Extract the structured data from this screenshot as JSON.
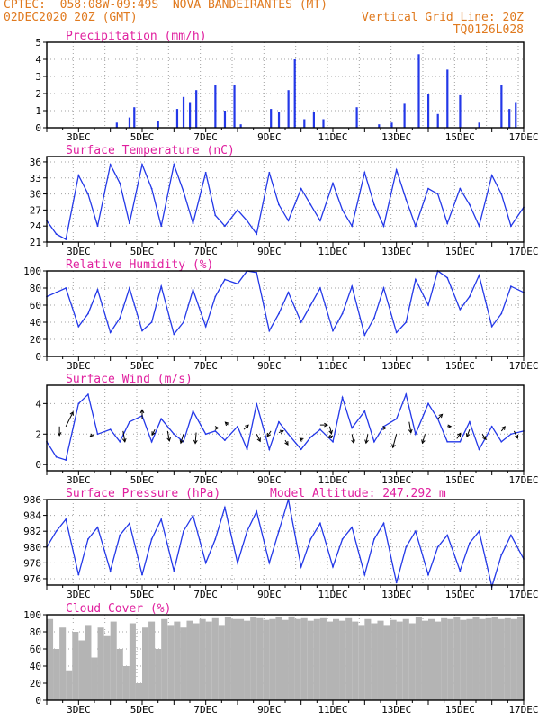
{
  "header": {
    "line1_left": "CPTEC:  058:08W-09:49S  NOVA BANDEIRANTES (MT)",
    "line2_left": "02DEC2020 20Z (GMT)",
    "line2_right": "Vertical Grid Line: 20Z",
    "line3_right": "TQ0126L028"
  },
  "colors": {
    "series": "#2338e8",
    "title": "#e0209f",
    "header": "#e07a1f",
    "cloud": "#b4b4b4",
    "arrow": "#000000"
  },
  "x_tick_labels": [
    "3DEC",
    "5DEC",
    "7DEC",
    "9DEC",
    "11DEC",
    "13DEC",
    "15DEC",
    "17DEC"
  ],
  "chart_data": [
    {
      "type": "bar",
      "title": "Precipitation (mm/h)",
      "ylim": [
        0,
        5
      ],
      "yticks": [
        0,
        1,
        2,
        3,
        4,
        5
      ],
      "grid": true,
      "bars": [
        [
          4.2,
          0.3
        ],
        [
          4.6,
          0.6
        ],
        [
          4.75,
          1.2
        ],
        [
          5.5,
          0.4
        ],
        [
          6.1,
          1.1
        ],
        [
          6.3,
          1.8
        ],
        [
          6.5,
          1.5
        ],
        [
          6.7,
          2.2
        ],
        [
          7.3,
          2.5
        ],
        [
          7.6,
          1.0
        ],
        [
          7.9,
          2.5
        ],
        [
          8.1,
          0.2
        ],
        [
          9.05,
          1.1
        ],
        [
          9.3,
          0.9
        ],
        [
          9.6,
          2.2
        ],
        [
          9.8,
          4.0
        ],
        [
          10.1,
          0.5
        ],
        [
          10.4,
          0.9
        ],
        [
          10.7,
          0.5
        ],
        [
          11.75,
          1.2
        ],
        [
          12.45,
          0.2
        ],
        [
          12.85,
          0.3
        ],
        [
          13.25,
          1.4
        ],
        [
          13.7,
          4.3
        ],
        [
          14.0,
          2.0
        ],
        [
          14.3,
          0.8
        ],
        [
          14.6,
          3.4
        ],
        [
          15.0,
          1.9
        ],
        [
          15.6,
          0.3
        ],
        [
          16.3,
          2.5
        ],
        [
          16.55,
          1.1
        ],
        [
          16.75,
          1.5
        ]
      ]
    },
    {
      "type": "line",
      "title": "Surface Temperature (nC)",
      "ylim": [
        21,
        37
      ],
      "yticks": [
        21,
        24,
        27,
        30,
        33,
        36
      ],
      "grid": true,
      "x": [
        2.0,
        2.3,
        2.6,
        3.0,
        3.3,
        3.6,
        4.0,
        4.3,
        4.6,
        5.0,
        5.3,
        5.6,
        6.0,
        6.3,
        6.6,
        7.0,
        7.3,
        7.6,
        8.0,
        8.3,
        8.6,
        9.0,
        9.3,
        9.6,
        10.0,
        10.3,
        10.6,
        11.0,
        11.3,
        11.6,
        12.0,
        12.3,
        12.6,
        13.0,
        13.3,
        13.6,
        14.0,
        14.3,
        14.6,
        15.0,
        15.3,
        15.6,
        16.0,
        16.3,
        16.6,
        17.0
      ],
      "values": [
        25,
        22.5,
        21.5,
        33.5,
        30,
        24,
        35.5,
        32,
        24.5,
        35.5,
        31,
        24,
        35.5,
        30.5,
        24.5,
        34,
        26,
        24,
        27,
        25,
        22.5,
        34,
        28,
        25,
        31,
        28,
        25,
        32,
        27,
        24,
        34,
        28,
        24,
        34.5,
        29,
        24,
        31,
        30,
        24.5,
        31,
        28,
        24,
        33.5,
        30,
        24,
        27.5
      ]
    },
    {
      "type": "line",
      "title": "Relative Humidity (%)",
      "ylim": [
        0,
        100
      ],
      "yticks": [
        0,
        20,
        40,
        60,
        80,
        100
      ],
      "grid": true,
      "x": [
        2.0,
        2.3,
        2.6,
        3.0,
        3.3,
        3.6,
        4.0,
        4.3,
        4.6,
        5.0,
        5.3,
        5.6,
        6.0,
        6.3,
        6.6,
        7.0,
        7.3,
        7.6,
        8.0,
        8.3,
        8.6,
        9.0,
        9.3,
        9.6,
        10.0,
        10.3,
        10.6,
        11.0,
        11.3,
        11.6,
        12.0,
        12.3,
        12.6,
        13.0,
        13.3,
        13.6,
        14.0,
        14.3,
        14.6,
        15.0,
        15.3,
        15.6,
        16.0,
        16.3,
        16.6,
        17.0
      ],
      "values": [
        70,
        75,
        80,
        35,
        50,
        78,
        28,
        45,
        80,
        30,
        40,
        82,
        26,
        40,
        78,
        35,
        70,
        90,
        85,
        100,
        98,
        30,
        50,
        75,
        40,
        60,
        80,
        30,
        50,
        82,
        25,
        45,
        80,
        28,
        40,
        90,
        60,
        100,
        92,
        55,
        70,
        95,
        35,
        50,
        82,
        75
      ]
    },
    {
      "type": "line",
      "title": "Surface Wind (m/s)",
      "ylim": [
        -0.4,
        5.2
      ],
      "yticks": [
        0,
        2,
        4
      ],
      "grid": true,
      "x": [
        2.0,
        2.3,
        2.6,
        3.0,
        3.3,
        3.6,
        4.0,
        4.3,
        4.6,
        5.0,
        5.3,
        5.6,
        6.0,
        6.3,
        6.6,
        7.0,
        7.3,
        7.6,
        8.0,
        8.3,
        8.6,
        9.0,
        9.3,
        9.6,
        10.0,
        10.3,
        10.6,
        11.0,
        11.3,
        11.6,
        12.0,
        12.3,
        12.6,
        13.0,
        13.3,
        13.6,
        14.0,
        14.3,
        14.6,
        15.0,
        15.3,
        15.6,
        16.0,
        16.3,
        16.6,
        17.0
      ],
      "values": [
        1.5,
        0.5,
        0.3,
        4.0,
        4.6,
        2.0,
        2.3,
        1.5,
        2.8,
        3.2,
        1.5,
        3.0,
        2.0,
        1.5,
        3.5,
        2.0,
        2.2,
        1.6,
        2.5,
        1.0,
        4.0,
        1.0,
        2.8,
        2.0,
        1.0,
        1.8,
        2.3,
        1.5,
        4.4,
        2.4,
        3.5,
        1.5,
        2.5,
        3.0,
        4.6,
        2.0,
        4.0,
        3.0,
        1.5,
        1.5,
        2.8,
        1.0,
        2.5,
        1.5,
        2.0,
        2.2
      ],
      "arrows": [
        [
          2.4,
          2.5,
          0.0,
          -1.0
        ],
        [
          2.6,
          2.5,
          0.8,
          1.6
        ],
        [
          3.5,
          2.0,
          -0.5,
          -0.3
        ],
        [
          4.4,
          2.2,
          0.2,
          -1.2
        ],
        [
          5.0,
          3.0,
          0.0,
          1.0
        ],
        [
          5.4,
          2.3,
          -0.3,
          -0.6
        ],
        [
          5.8,
          2.2,
          0.2,
          -1.1
        ],
        [
          6.3,
          2.0,
          -0.3,
          -1.0
        ],
        [
          6.7,
          2.1,
          -0.1,
          -1.2
        ],
        [
          7.25,
          2.4,
          0.5,
          0.0
        ],
        [
          7.7,
          2.6,
          -0.3,
          0.3
        ],
        [
          8.2,
          2.3,
          0.5,
          0.5
        ],
        [
          8.6,
          2.0,
          0.4,
          -0.8
        ],
        [
          9.05,
          2.2,
          -0.4,
          -0.6
        ],
        [
          9.3,
          2.1,
          0.5,
          0.2
        ],
        [
          9.5,
          1.6,
          0.3,
          -0.5
        ],
        [
          10.05,
          1.6,
          -0.3,
          0.2
        ],
        [
          10.6,
          2.6,
          0.8,
          0.0
        ],
        [
          10.9,
          2.5,
          0.2,
          -0.8
        ],
        [
          11.0,
          1.9,
          -0.5,
          -0.2
        ],
        [
          11.6,
          2.0,
          0.2,
          -1.0
        ],
        [
          12.1,
          2.0,
          -0.2,
          -1.0
        ],
        [
          12.5,
          2.4,
          0.6,
          0.0
        ],
        [
          13.0,
          2.0,
          -0.4,
          -1.5
        ],
        [
          13.4,
          2.8,
          0.2,
          -1.2
        ],
        [
          13.9,
          2.0,
          -0.3,
          -1.0
        ],
        [
          14.3,
          3.0,
          0.5,
          0.5
        ],
        [
          14.6,
          2.5,
          0.4,
          0.0
        ],
        [
          14.9,
          1.7,
          0.4,
          0.6
        ],
        [
          15.3,
          2.3,
          -0.3,
          -0.8
        ],
        [
          15.7,
          2.0,
          0.4,
          -0.6
        ],
        [
          16.3,
          2.2,
          0.4,
          0.5
        ],
        [
          16.7,
          2.2,
          0.4,
          -0.8
        ]
      ]
    },
    {
      "type": "line",
      "title": "Surface Pressure (hPa)",
      "annotation": "Model Altitude: 247.292 m",
      "ylim": [
        975.2,
        986
      ],
      "yticks": [
        976,
        978,
        980,
        982,
        984,
        986
      ],
      "grid": true,
      "x": [
        2.0,
        2.3,
        2.6,
        3.0,
        3.3,
        3.6,
        4.0,
        4.3,
        4.6,
        5.0,
        5.3,
        5.6,
        6.0,
        6.3,
        6.6,
        7.0,
        7.3,
        7.6,
        8.0,
        8.3,
        8.6,
        9.0,
        9.3,
        9.6,
        10.0,
        10.3,
        10.6,
        11.0,
        11.3,
        11.6,
        12.0,
        12.3,
        12.6,
        13.0,
        13.3,
        13.6,
        14.0,
        14.3,
        14.6,
        15.0,
        15.3,
        15.6,
        16.0,
        16.3,
        16.6,
        17.0
      ],
      "values": [
        980,
        982,
        983.5,
        976.5,
        981,
        982.5,
        977,
        981.5,
        983,
        976.5,
        981,
        983.5,
        977,
        982,
        984,
        978,
        981,
        985,
        978,
        982,
        984.5,
        978,
        982,
        986,
        977.5,
        981,
        983,
        977.5,
        981,
        982.5,
        976.5,
        981,
        983,
        975.5,
        980,
        982,
        976.5,
        980,
        981.5,
        977,
        980.5,
        982,
        975,
        979,
        981.5,
        978.5
      ]
    },
    {
      "type": "bar",
      "title": "Cloud Cover (%)",
      "ylim": [
        0,
        100
      ],
      "yticks": [
        0,
        20,
        40,
        60,
        80,
        100
      ],
      "grid": true,
      "x": [
        2.0,
        2.2,
        2.4,
        2.6,
        2.8,
        3.0,
        3.2,
        3.4,
        3.6,
        3.8,
        4.0,
        4.2,
        4.4,
        4.6,
        4.8,
        5.0,
        5.2,
        5.4,
        5.6,
        5.8,
        6.0,
        6.2,
        6.4,
        6.6,
        6.8,
        7.0,
        7.2,
        7.4,
        7.6,
        7.8,
        8.0,
        8.2,
        8.4,
        8.6,
        8.8,
        9.0,
        9.2,
        9.4,
        9.6,
        9.8,
        10.0,
        10.2,
        10.4,
        10.6,
        10.8,
        11.0,
        11.2,
        11.4,
        11.6,
        11.8,
        12.0,
        12.2,
        12.4,
        12.6,
        12.8,
        13.0,
        13.2,
        13.4,
        13.6,
        13.8,
        14.0,
        14.2,
        14.4,
        14.6,
        14.8,
        15.0,
        15.2,
        15.4,
        15.6,
        15.8,
        16.0,
        16.2,
        16.4,
        16.6,
        16.8
      ],
      "values": [
        95,
        60,
        85,
        35,
        80,
        70,
        88,
        50,
        85,
        75,
        92,
        60,
        40,
        90,
        20,
        85,
        92,
        60,
        95,
        88,
        92,
        85,
        93,
        90,
        95,
        92,
        96,
        88,
        97,
        95,
        95,
        93,
        97,
        96,
        94,
        95,
        97,
        94,
        98,
        95,
        96,
        93,
        95,
        96,
        92,
        95,
        93,
        96,
        92,
        88,
        95,
        90,
        93,
        88,
        94,
        92,
        95,
        90,
        97,
        93,
        95,
        92,
        96,
        95,
        97,
        94,
        95,
        97,
        95,
        96,
        97,
        95,
        96,
        95,
        97
      ]
    }
  ]
}
